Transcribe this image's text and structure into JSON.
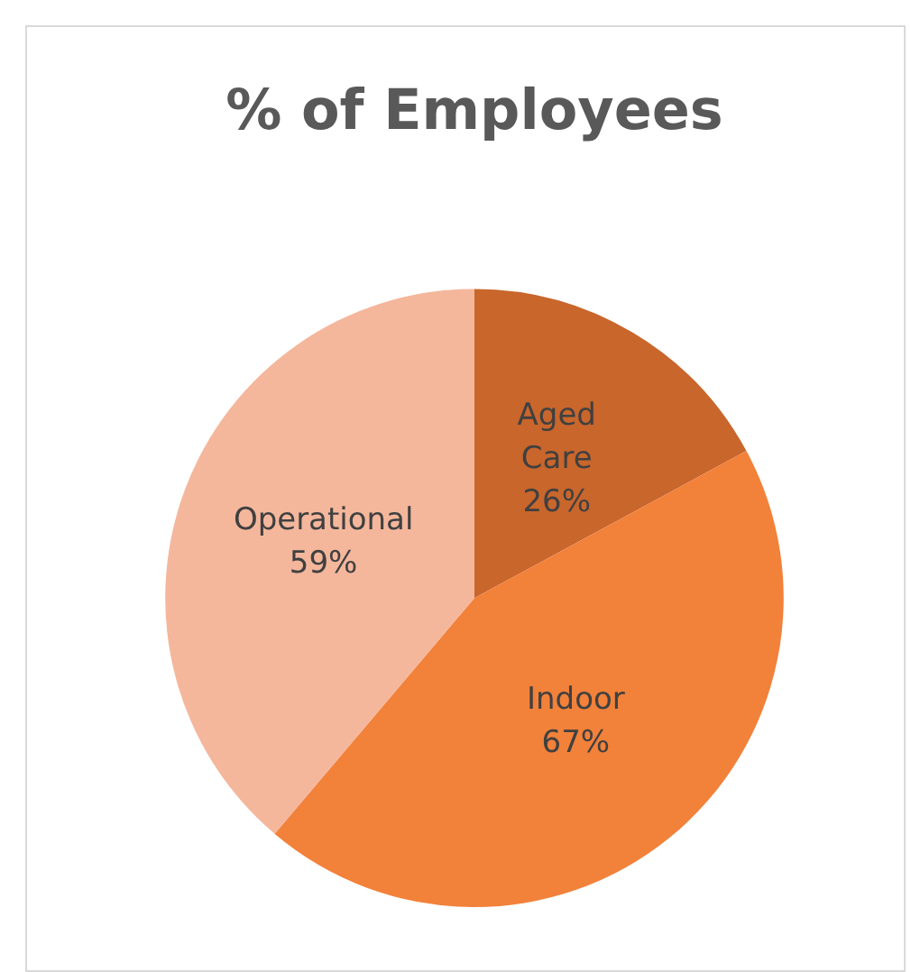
{
  "chart_data": {
    "type": "pie",
    "title": "% of Employees",
    "categories": [
      "Aged Care",
      "Indoor",
      "Operational"
    ],
    "values": [
      26,
      67,
      59
    ],
    "colors": [
      "#c9662c",
      "#f2813a",
      "#f4b79c"
    ],
    "value_labels": [
      "26%",
      "67%",
      "59%"
    ],
    "legend": false
  }
}
